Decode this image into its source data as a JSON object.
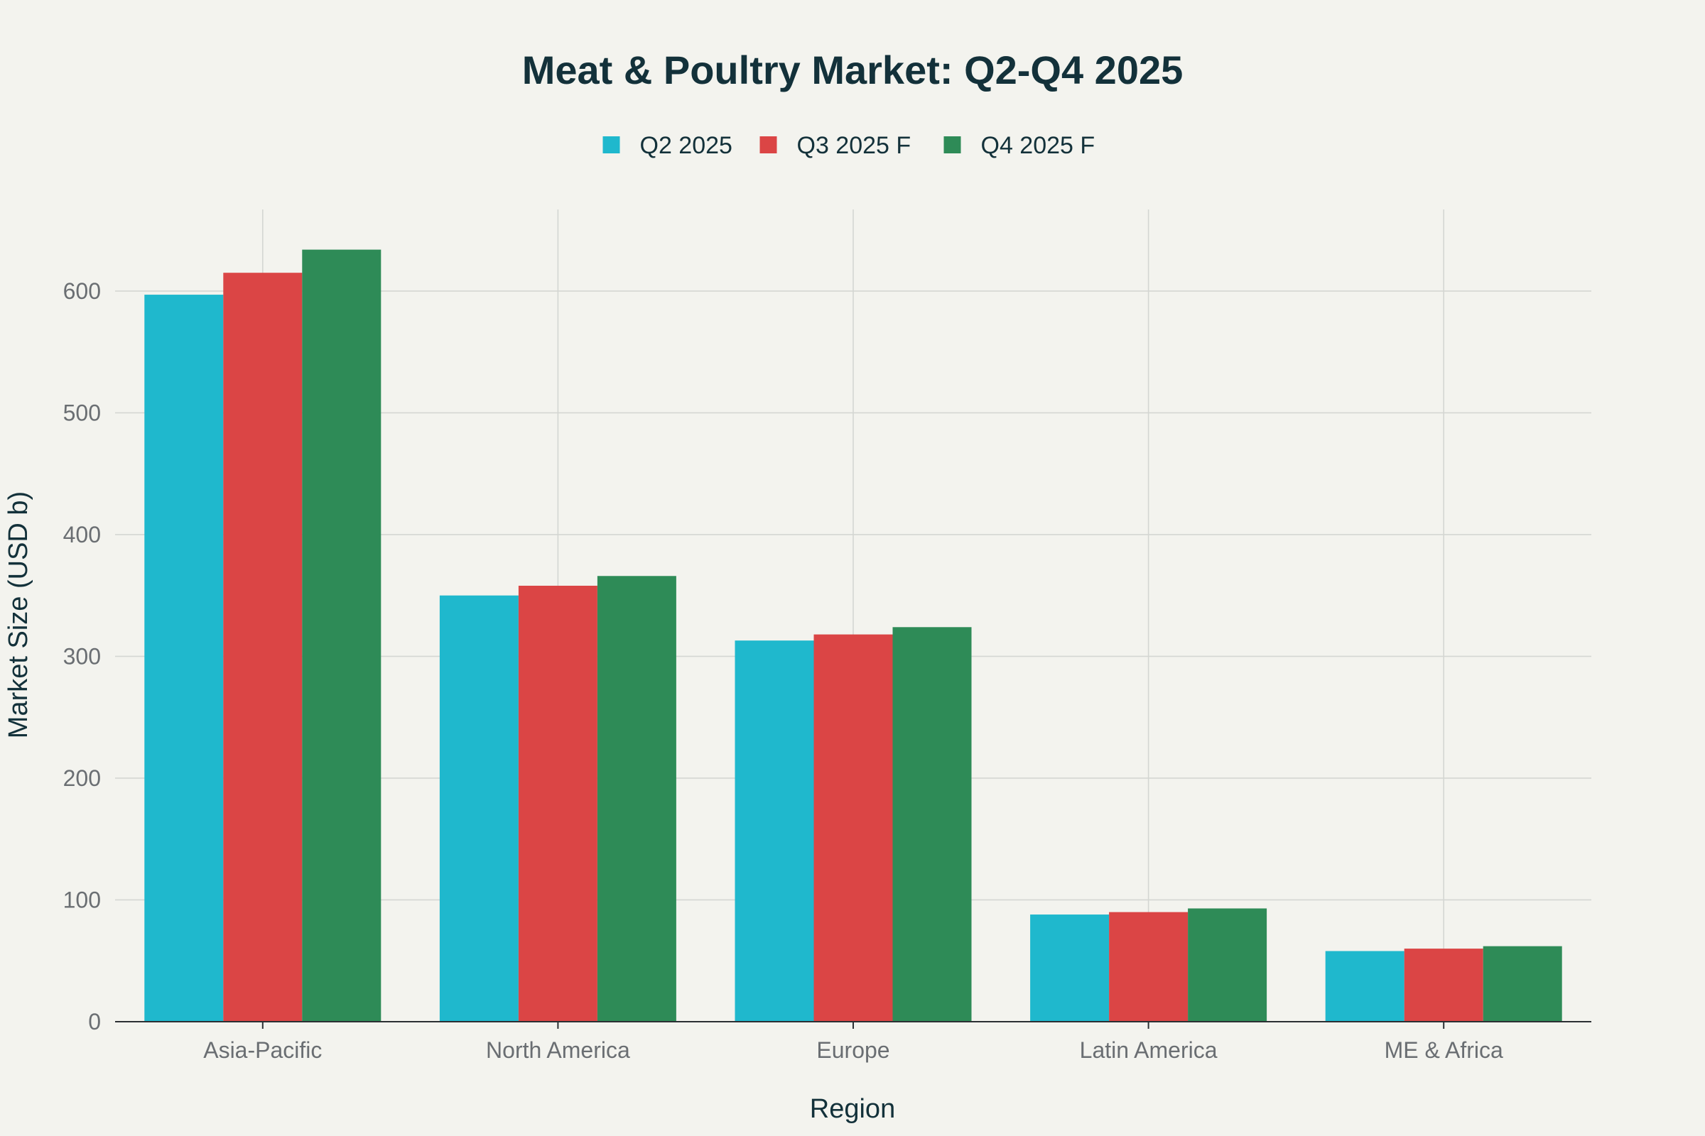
{
  "chart_data": {
    "type": "bar",
    "title": "Meat & Poultry Market: Q2-Q4 2025",
    "xlabel": "Region",
    "ylabel": "Market Size (USD b)",
    "categories": [
      "Asia-Pacific",
      "North America",
      "Europe",
      "Latin America",
      "ME & Africa"
    ],
    "series": [
      {
        "name": "Q2 2025",
        "color": "#1fb8cd",
        "values": [
          597,
          350,
          313,
          88,
          58
        ]
      },
      {
        "name": "Q3 2025 F",
        "color": "#db4545",
        "values": [
          615,
          358,
          318,
          90,
          60
        ]
      },
      {
        "name": "Q4 2025 F",
        "color": "#2e8b57",
        "values": [
          634,
          366,
          324,
          93,
          62
        ]
      }
    ],
    "ylim": [
      0,
      667
    ],
    "yticks": [
      0,
      100,
      200,
      300,
      400,
      500,
      600
    ],
    "grid": true,
    "legend_position": "top-center"
  }
}
